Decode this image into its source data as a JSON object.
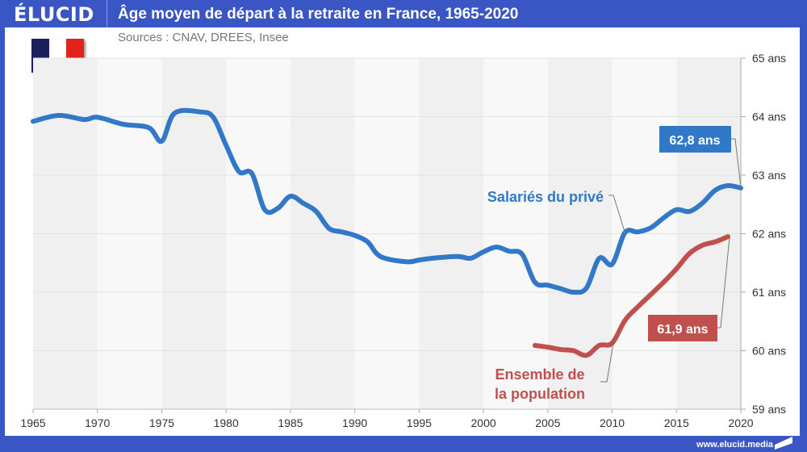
{
  "header": {
    "logo": "ÉLUCID",
    "title": "Âge moyen de départ à la retraite en France, 1965-2020",
    "subtitle": "Sources : CNAV, DREES, Insee"
  },
  "footer": {
    "url": "www.elucid.media"
  },
  "flag": {
    "colors": [
      "#1a1f5e",
      "#ffffff",
      "#e2231a"
    ]
  },
  "chart_data": {
    "type": "line",
    "title": "Âge moyen de départ à la retraite en France, 1965-2020",
    "xlabel": "",
    "ylabel": "",
    "xlim": [
      1965,
      2020
    ],
    "ylim": [
      59,
      65
    ],
    "x_ticks": [
      1965,
      1970,
      1975,
      1980,
      1985,
      1990,
      1995,
      2000,
      2005,
      2010,
      2015,
      2020
    ],
    "y_ticks": [
      59,
      60,
      61,
      62,
      63,
      64,
      65
    ],
    "y_tick_labels": [
      "59 ans",
      "60 ans",
      "61 ans",
      "62 ans",
      "63 ans",
      "64 ans",
      "65 ans"
    ],
    "y_axis_side": "right",
    "grid": true,
    "series": [
      {
        "name": "Salariés du privé",
        "color": "#3278c8",
        "callout": "62,8 ans",
        "x": [
          1965,
          1967,
          1969,
          1970,
          1972,
          1974,
          1975,
          1976,
          1978,
          1979,
          1980,
          1981,
          1982,
          1983,
          1984,
          1985,
          1986,
          1987,
          1988,
          1989,
          1990,
          1991,
          1992,
          1994,
          1995,
          1996,
          1998,
          1999,
          2000,
          2001,
          2002,
          2003,
          2004,
          2005,
          2006,
          2007,
          2008,
          2009,
          2010,
          2011,
          2012,
          2013,
          2014,
          2015,
          2016,
          2017,
          2018,
          2019,
          2020
        ],
        "values": [
          63.92,
          64.02,
          63.95,
          63.99,
          63.87,
          63.81,
          63.58,
          64.06,
          64.08,
          63.99,
          63.51,
          63.06,
          63.03,
          62.41,
          62.43,
          62.64,
          62.52,
          62.38,
          62.09,
          62.03,
          61.97,
          61.86,
          61.61,
          61.52,
          61.55,
          61.58,
          61.61,
          61.58,
          61.69,
          61.77,
          61.7,
          61.65,
          61.17,
          61.12,
          61.06,
          61.0,
          61.07,
          61.58,
          61.48,
          62.02,
          62.03,
          62.1,
          62.27,
          62.41,
          62.38,
          62.52,
          62.74,
          62.82,
          62.78
        ]
      },
      {
        "name": "Ensemble de la population",
        "label_lines": [
          "Ensemble de",
          "la population"
        ],
        "color": "#c0504d",
        "callout": "61,9 ans",
        "x": [
          2004,
          2005,
          2006,
          2007,
          2008,
          2009,
          2010,
          2011,
          2012,
          2013,
          2014,
          2015,
          2016,
          2017,
          2018,
          2019
        ],
        "values": [
          60.09,
          60.06,
          60.02,
          60.0,
          59.92,
          60.09,
          60.13,
          60.52,
          60.75,
          60.96,
          61.17,
          61.4,
          61.66,
          61.8,
          61.86,
          61.95
        ]
      }
    ]
  }
}
